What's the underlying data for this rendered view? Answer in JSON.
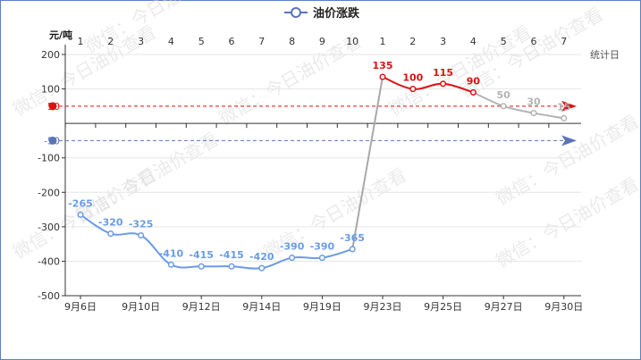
{
  "chart_data": {
    "type": "line",
    "legend": {
      "label": "油价涨跌",
      "placement": "top-center"
    },
    "y_unit_label": "元/吨",
    "x_axis_name": "统计日",
    "ylim": [
      -500,
      200
    ],
    "y_ticks": [
      200,
      100,
      50,
      -50,
      -100,
      -200,
      -300,
      -400,
      -500
    ],
    "top_day_labels": [
      "1",
      "2",
      "3",
      "4",
      "5",
      "6",
      "7",
      "8",
      "9",
      "10",
      "1",
      "2",
      "3",
      "4",
      "5",
      "6",
      "7"
    ],
    "bottom_date_labels": [
      "9月6日",
      "9月10日",
      "9月12日",
      "9月14日",
      "9月19日",
      "9月23日",
      "9月25日",
      "9月27日",
      "9月30日"
    ],
    "bottom_label_positions": [
      0,
      2,
      4,
      6,
      8,
      10,
      12,
      14,
      16
    ],
    "series": [
      {
        "name": "油价涨跌",
        "x": [
          0,
          1,
          2,
          3,
          4,
          5,
          6,
          7,
          8,
          9,
          10,
          11,
          12,
          13,
          14,
          15,
          16
        ],
        "values": [
          -265,
          -320,
          -325,
          -410,
          -415,
          -415,
          -420,
          -390,
          -390,
          -365,
          135,
          100,
          115,
          90,
          50,
          30,
          15
        ],
        "segment_colors": {
          "negative": "#6a9be6",
          "positive": "#e01010",
          "projected": "#b3b3b3"
        },
        "projected_from_index": 13
      }
    ],
    "reference_lines": [
      {
        "value": 50,
        "label": "50",
        "color": "#e01010"
      },
      {
        "value": -50,
        "label": "-50",
        "color": "#5b74b8"
      }
    ],
    "grid": true
  },
  "watermark": "微信：今日油价查看"
}
